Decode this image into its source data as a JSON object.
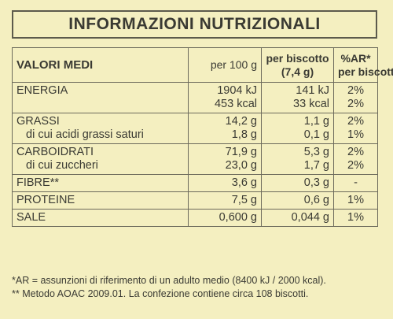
{
  "title": "INFORMAZIONI NUTRIZIONALI",
  "header": {
    "label": "VALORI MEDI",
    "col1": "per 100 g",
    "col2_line1": "per biscotto",
    "col2_line2": "(7,4 g)",
    "col3_line1": "%AR*",
    "col3_line2": "per biscotto"
  },
  "rows": [
    {
      "l1": "ENERGIA",
      "l2": "",
      "a1": "1904 kJ",
      "a2": "453 kcal",
      "b1": "141 kJ",
      "b2": "33 kcal",
      "c1": "2%",
      "c2": "2%"
    },
    {
      "l1": "GRASSI",
      "l2": "di cui acidi grassi saturi",
      "a1": "14,2 g",
      "a2": "1,8 g",
      "b1": "1,1 g",
      "b2": "0,1 g",
      "c1": "2%",
      "c2": "1%"
    },
    {
      "l1": "CARBOIDRATI",
      "l2": "di cui zuccheri",
      "a1": "71,9 g",
      "a2": "23,0 g",
      "b1": "5,3 g",
      "b2": "1,7 g",
      "c1": "2%",
      "c2": "2%"
    },
    {
      "l1": "FIBRE**",
      "a1": "3,6 g",
      "b1": "0,3 g",
      "c1": "-"
    },
    {
      "l1": "PROTEINE",
      "a1": "7,5 g",
      "b1": "0,6 g",
      "c1": "1%"
    },
    {
      "l1": "SALE",
      "a1": "0,600 g",
      "b1": "0,044 g",
      "c1": "1%"
    }
  ],
  "footnotes": [
    "*AR = assunzioni di riferimento di un adulto medio (8400 kJ / 2000 kcal).",
    "** Metodo AOAC 2009.01. La confezione contiene circa 108 biscotti."
  ]
}
